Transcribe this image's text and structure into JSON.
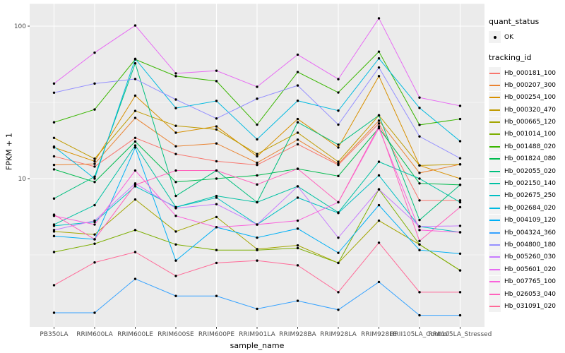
{
  "chart_data": {
    "type": "line",
    "title": "",
    "xlabel": "sample_name",
    "ylabel": "FPKM + 1",
    "y_scale": "log10",
    "grid": true,
    "legend_position": "right",
    "panel_bg": "#EBEBEB",
    "gridline_color": "#FFFFFF",
    "point_color": "#000000",
    "tick_label_color": "#4D4D4D",
    "ylim": [
      1.07,
      139
    ],
    "y_ticks": [
      {
        "label": "100",
        "value": 100
      },
      {
        "label": "10",
        "value": 10
      }
    ],
    "y_minor": [
      3.162,
      31.62
    ],
    "categories": [
      "PB350LA",
      "RRIM600LA",
      "RRIM600LE",
      "RRIM600SE",
      "RRIM600PE",
      "RRIM901LA",
      "RRIM928BA",
      "RRIM928LA",
      "RRIM928LE",
      "RRII105LA_Control",
      "RRII105LA_Stressed"
    ],
    "series": [
      {
        "name": "Hb_000181_100",
        "color": "#F8766D",
        "values": [
          14,
          12,
          18.5,
          14.5,
          13,
          12.3,
          16.8,
          12.3,
          23,
          7.2,
          7.2
        ]
      },
      {
        "name": "Hb_000207_300",
        "color": "#EA8331",
        "values": [
          12.3,
          12.5,
          25,
          16.3,
          17,
          12.7,
          18,
          12.5,
          24,
          10.9,
          12.4
        ]
      },
      {
        "name": "Hb_000254_100",
        "color": "#D89000",
        "values": [
          16,
          13,
          35,
          20,
          22,
          14,
          24.6,
          16,
          47,
          12.2,
          10
        ]
      },
      {
        "name": "Hb_000320_470",
        "color": "#C09B00",
        "values": [
          18.5,
          13.5,
          27.8,
          22.2,
          21,
          14.5,
          20,
          12.9,
          26,
          12.2,
          12.4
        ]
      },
      {
        "name": "Hb_000665_120",
        "color": "#A3A500",
        "values": [
          4.5,
          4.3,
          7.3,
          4.5,
          5.6,
          3.45,
          3.65,
          2.8,
          5.3,
          3.7,
          2.5
        ]
      },
      {
        "name": "Hb_001014_100",
        "color": "#7CAE00",
        "values": [
          3.3,
          3.74,
          4.6,
          3.7,
          3.4,
          3.4,
          3.5,
          2.8,
          8.5,
          3.7,
          2.5
        ]
      },
      {
        "name": "Hb_001488_020",
        "color": "#39B600",
        "values": [
          23.4,
          28.4,
          60.5,
          47,
          43.6,
          22.6,
          50,
          36.7,
          68,
          22.5,
          24.6
        ]
      },
      {
        "name": "Hb_001824_080",
        "color": "#00BB4E",
        "values": [
          11.5,
          9.5,
          17.5,
          9.5,
          10,
          10.5,
          11.6,
          10.4,
          21.5,
          9.3,
          9.1
        ]
      },
      {
        "name": "Hb_002055_020",
        "color": "#00BF7D",
        "values": [
          7.4,
          10.3,
          57,
          7.7,
          11.3,
          7.0,
          23.4,
          16.7,
          26,
          5.35,
          9.1
        ]
      },
      {
        "name": "Hb_002150_140",
        "color": "#00C1A3",
        "values": [
          5.0,
          6.7,
          16.5,
          6.5,
          7.7,
          7.0,
          8.9,
          6.0,
          12.9,
          10,
          7.0
        ]
      },
      {
        "name": "Hb_002675_250",
        "color": "#00BFC4",
        "values": [
          4.9,
          5.2,
          8.9,
          6.5,
          7.5,
          5.0,
          7.5,
          5.95,
          10.5,
          4.85,
          4.45
        ]
      },
      {
        "name": "Hb_002684_020",
        "color": "#00BAE0",
        "values": [
          16.2,
          10,
          61,
          29,
          32.3,
          18.1,
          32.4,
          27.9,
          61.4,
          29.1,
          17.6
        ]
      },
      {
        "name": "Hb_004109_120",
        "color": "#00B0F6",
        "values": [
          4.2,
          4.0,
          16,
          2.9,
          4.8,
          4.1,
          4.7,
          3.26,
          6.7,
          3.4,
          3.22
        ]
      },
      {
        "name": "Hb_004324_360",
        "color": "#35A2FF",
        "values": [
          1.32,
          1.32,
          2.2,
          1.7,
          1.7,
          1.4,
          1.58,
          1.38,
          2.1,
          1.27,
          1.27
        ]
      },
      {
        "name": "Hb_004800_180",
        "color": "#9590FF",
        "values": [
          36.6,
          42,
          45,
          33,
          24.8,
          33.4,
          40.8,
          22.6,
          53.5,
          18.9,
          13.6
        ]
      },
      {
        "name": "Hb_005260_030",
        "color": "#C77CFF",
        "values": [
          4.6,
          5.3,
          9.3,
          6.4,
          6.8,
          5.0,
          8.9,
          4.1,
          8.5,
          4.85,
          4.9
        ]
      },
      {
        "name": "Hb_005601_020",
        "color": "#E76BF3",
        "values": [
          42,
          67,
          101,
          49,
          51,
          40,
          65,
          44.9,
          112.5,
          34,
          30
        ]
      },
      {
        "name": "Hb_007765_100",
        "color": "#FA62DB",
        "values": [
          5.7,
          5.0,
          11.3,
          5.7,
          4.8,
          5.0,
          5.3,
          7.0,
          21.4,
          4.6,
          4.45
        ]
      },
      {
        "name": "Hb_026053_040",
        "color": "#FF62BC",
        "values": [
          5.8,
          4.0,
          9.1,
          11.3,
          11.3,
          9.15,
          11.6,
          7.0,
          22,
          3.9,
          6.5
        ]
      },
      {
        "name": "Hb_031091_020",
        "color": "#FF6A98",
        "values": [
          2.0,
          2.82,
          3.3,
          2.3,
          2.8,
          2.9,
          2.7,
          1.8,
          3.8,
          1.8,
          1.8
        ]
      }
    ]
  },
  "legend": {
    "quant_status_title": "quant_status",
    "quant_status_items": [
      {
        "label": "OK"
      }
    ],
    "tracking_title": "tracking_id"
  }
}
